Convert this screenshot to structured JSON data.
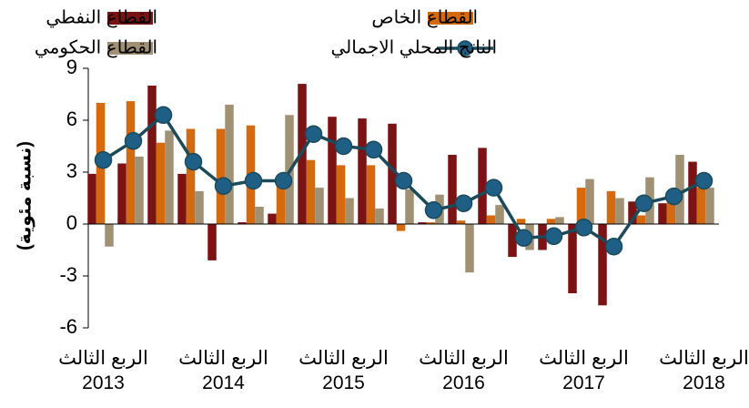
{
  "chart_data": {
    "type": "bar_line",
    "ylabel": "(نسبة مئوية)",
    "categories": [
      "الربع الثالث 2013",
      null,
      null,
      null,
      "الربع الثالث 2014",
      null,
      null,
      null,
      "الربع الثالث 2015",
      null,
      null,
      null,
      "الربع الثالث 2016",
      null,
      null,
      null,
      "الربع الثالث 2017",
      null,
      null,
      null,
      "الربع الثالث 2018"
    ],
    "series": [
      {
        "name": "القطاع النفطي",
        "type": "bar",
        "color": "#7b1315",
        "values": [
          2.9,
          3.5,
          8.0,
          2.9,
          -2.1,
          0.1,
          0.6,
          8.1,
          6.2,
          6.1,
          5.8,
          0.1,
          4.0,
          4.4,
          -1.9,
          -1.5,
          -4.0,
          -4.7,
          1.3,
          1.2,
          3.6
        ]
      },
      {
        "name": "القطاع الخاص",
        "type": "bar",
        "color": "#d4690e",
        "values": [
          7.0,
          7.1,
          4.7,
          5.5,
          5.5,
          5.7,
          2.6,
          3.7,
          3.4,
          3.4,
          -0.4,
          0.1,
          0.2,
          0.5,
          0.3,
          0.3,
          2.1,
          1.9,
          0.5,
          1.6,
          2.1
        ]
      },
      {
        "name": "القطاع الحكومي",
        "type": "bar",
        "color": "#a09074",
        "values": [
          -1.3,
          3.9,
          5.4,
          1.9,
          6.9,
          1.0,
          6.3,
          2.1,
          1.5,
          0.9,
          2.0,
          1.7,
          -2.8,
          1.1,
          -1.5,
          0.4,
          2.6,
          1.5,
          2.7,
          4.0,
          2.1
        ]
      },
      {
        "name": "الناتج المحلي الاجمالي",
        "type": "line",
        "color": "#1b4a5a",
        "marker_color": "#1f5f86",
        "values": [
          3.7,
          4.8,
          6.3,
          3.6,
          2.2,
          2.5,
          2.5,
          5.2,
          4.5,
          4.3,
          2.5,
          0.8,
          1.2,
          2.1,
          -0.8,
          -0.7,
          -0.2,
          -1.3,
          1.2,
          1.6,
          2.5
        ]
      }
    ],
    "ylim": [
      -6,
      9
    ],
    "yticks": [
      9,
      6,
      3,
      0,
      -3,
      -6
    ]
  }
}
